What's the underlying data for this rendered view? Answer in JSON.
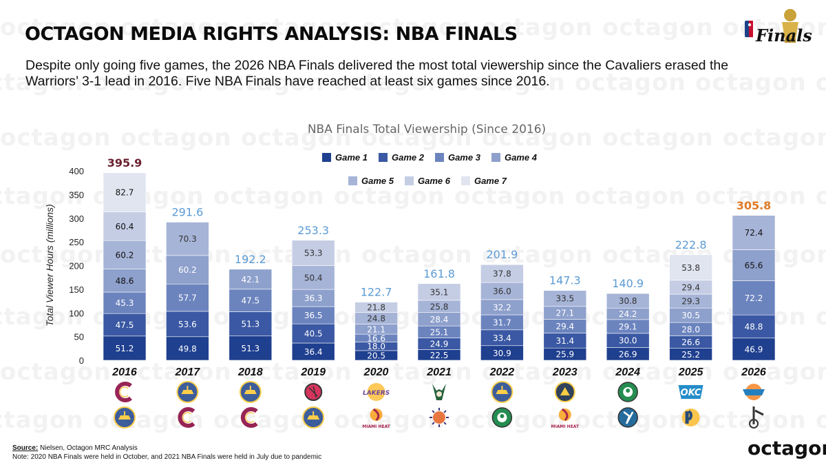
{
  "header": {
    "title": "OCTAGON MEDIA RIGHTS ANALYSIS: NBA FINALS",
    "subtitle": "Despite only going five games, the 2026 NBA Finals delivered the most total viewership since the Cavaliers erased the Warriors’ 3-1 lead in 2016. Five NBA Finals have reached at least six games since 2016.",
    "logo_text": "Finals"
  },
  "watermark_text": "octagon",
  "colors": {
    "game1": "#1f3f8f",
    "game2": "#3a58a3",
    "game3": "#6c84be",
    "game4": "#8ea0cc",
    "game5": "#a6b4d7",
    "game6": "#c4cde4",
    "game7": "#e1e5f0",
    "total_default": "#5b9bd5",
    "total_2016": "#6b1f2e",
    "total_2026": "#e07b27"
  },
  "chart_data": {
    "type": "bar",
    "stacked": true,
    "title": "NBA Finals Total Viewership (Since 2016)",
    "ylabel": "Total Viewer Hours (millions)",
    "ylim": [
      0,
      400
    ],
    "yticks": [
      0,
      50,
      100,
      150,
      200,
      250,
      300,
      350,
      400
    ],
    "legend": [
      "Game 1",
      "Game 2",
      "Game 3",
      "Game 4",
      "Game 5",
      "Game 6",
      "Game 7"
    ],
    "legend_placement": "top-center",
    "categories": [
      "2016",
      "2017",
      "2018",
      "2019",
      "2020",
      "2021",
      "2022",
      "2023",
      "2024",
      "2025",
      "2026"
    ],
    "series": [
      {
        "name": "Game 1",
        "values": [
          51.2,
          49.8,
          51.3,
          36.4,
          20.5,
          22.5,
          30.9,
          25.9,
          26.9,
          25.2,
          46.9
        ]
      },
      {
        "name": "Game 2",
        "values": [
          47.5,
          53.6,
          51.3,
          40.5,
          18.0,
          24.9,
          33.4,
          31.4,
          30.0,
          26.6,
          48.8
        ]
      },
      {
        "name": "Game 3",
        "values": [
          45.3,
          57.7,
          47.5,
          36.5,
          16.6,
          25.1,
          31.7,
          29.4,
          29.1,
          28.0,
          72.2
        ]
      },
      {
        "name": "Game 4",
        "values": [
          48.6,
          60.2,
          42.1,
          36.3,
          21.1,
          28.4,
          32.2,
          27.1,
          24.2,
          30.5,
          65.6
        ]
      },
      {
        "name": "Game 5",
        "values": [
          60.2,
          70.3,
          null,
          50.4,
          24.8,
          25.8,
          36.0,
          33.5,
          30.8,
          29.3,
          72.4
        ]
      },
      {
        "name": "Game 6",
        "values": [
          60.4,
          null,
          null,
          53.3,
          21.8,
          35.1,
          37.8,
          null,
          null,
          29.4,
          null
        ]
      },
      {
        "name": "Game 7",
        "values": [
          82.7,
          null,
          null,
          null,
          null,
          null,
          null,
          null,
          null,
          53.8,
          null
        ]
      }
    ],
    "totals": [
      395.9,
      291.6,
      192.2,
      253.3,
      122.7,
      161.8,
      201.9,
      147.3,
      140.9,
      222.8,
      305.8
    ]
  },
  "teams": [
    {
      "year": "2016",
      "winner_icon": "cavaliers-logo-icon",
      "loser_icon": "warriors-logo-icon"
    },
    {
      "year": "2017",
      "winner_icon": "warriors-logo-icon",
      "loser_icon": "cavaliers-logo-icon"
    },
    {
      "year": "2018",
      "winner_icon": "warriors-logo-icon",
      "loser_icon": "cavaliers-logo-icon"
    },
    {
      "year": "2019",
      "winner_icon": "raptors-logo-icon",
      "loser_icon": "warriors-logo-icon"
    },
    {
      "year": "2020",
      "winner_icon": "lakers-logo-icon",
      "loser_icon": "heat-logo-icon"
    },
    {
      "year": "2021",
      "winner_icon": "bucks-logo-icon",
      "loser_icon": "suns-logo-icon"
    },
    {
      "year": "2022",
      "winner_icon": "warriors-logo-icon",
      "loser_icon": "celtics-logo-icon"
    },
    {
      "year": "2023",
      "winner_icon": "nuggets-logo-icon",
      "loser_icon": "heat-logo-icon"
    },
    {
      "year": "2024",
      "winner_icon": "celtics-logo-icon",
      "loser_icon": "mavericks-logo-icon"
    },
    {
      "year": "2025",
      "winner_icon": "thunder-logo-icon",
      "loser_icon": "pacers-logo-icon"
    },
    {
      "year": "2026",
      "winner_icon": "knicks-logo-icon",
      "loser_icon": "spurs-logo-icon"
    }
  ],
  "logo_texts": {
    "lakers": "LAKERS",
    "heat": "MIAMI HEAT",
    "okc": "OKC"
  },
  "footer": {
    "source_label": "Source:",
    "source_text": " Nielsen, Octagon MRC Analysis",
    "note": "Note: 2020 NBA Finals were held in October, and 2021 NBA Finals were held in July due to pandemic",
    "brand": "octagon"
  }
}
